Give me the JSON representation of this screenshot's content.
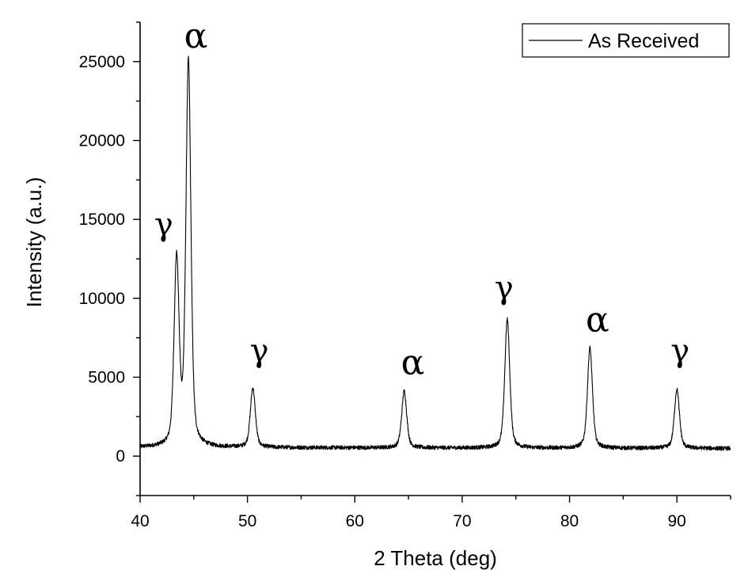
{
  "chart_data": {
    "type": "line",
    "title": "",
    "xlabel": "2 Theta (deg)",
    "ylabel": "Intensity (a.u.)",
    "xlim": [
      40,
      95
    ],
    "ylim": [
      -2500,
      27500
    ],
    "x_ticks": [
      40,
      50,
      60,
      70,
      80,
      90
    ],
    "y_ticks": [
      0,
      5000,
      10000,
      15000,
      20000,
      25000
    ],
    "grid": false,
    "legend": {
      "position": "top-right",
      "entries": [
        "As Received"
      ]
    },
    "series": [
      {
        "name": "As Received",
        "color": "#000000",
        "baseline": 550,
        "peaks": [
          {
            "x": 43.4,
            "y": 12300,
            "phase": "γ"
          },
          {
            "x": 44.5,
            "y": 24900,
            "phase": "α"
          },
          {
            "x": 50.5,
            "y": 4300,
            "phase": "γ"
          },
          {
            "x": 64.6,
            "y": 4150,
            "phase": "α"
          },
          {
            "x": 74.2,
            "y": 8700,
            "phase": "γ"
          },
          {
            "x": 81.9,
            "y": 6900,
            "phase": "α"
          },
          {
            "x": 90.0,
            "y": 4300,
            "phase": "γ"
          }
        ]
      }
    ],
    "annotations": [
      {
        "text": "γ",
        "x": 42.2,
        "y": 14000
      },
      {
        "text": "α",
        "x": 45.2,
        "y": 25900
      },
      {
        "text": "γ",
        "x": 51.1,
        "y": 6000
      },
      {
        "text": "α",
        "x": 65.4,
        "y": 5200
      },
      {
        "text": "γ",
        "x": 73.9,
        "y": 10000
      },
      {
        "text": "α",
        "x": 82.6,
        "y": 7900
      },
      {
        "text": "γ",
        "x": 90.3,
        "y": 6000
      }
    ]
  }
}
